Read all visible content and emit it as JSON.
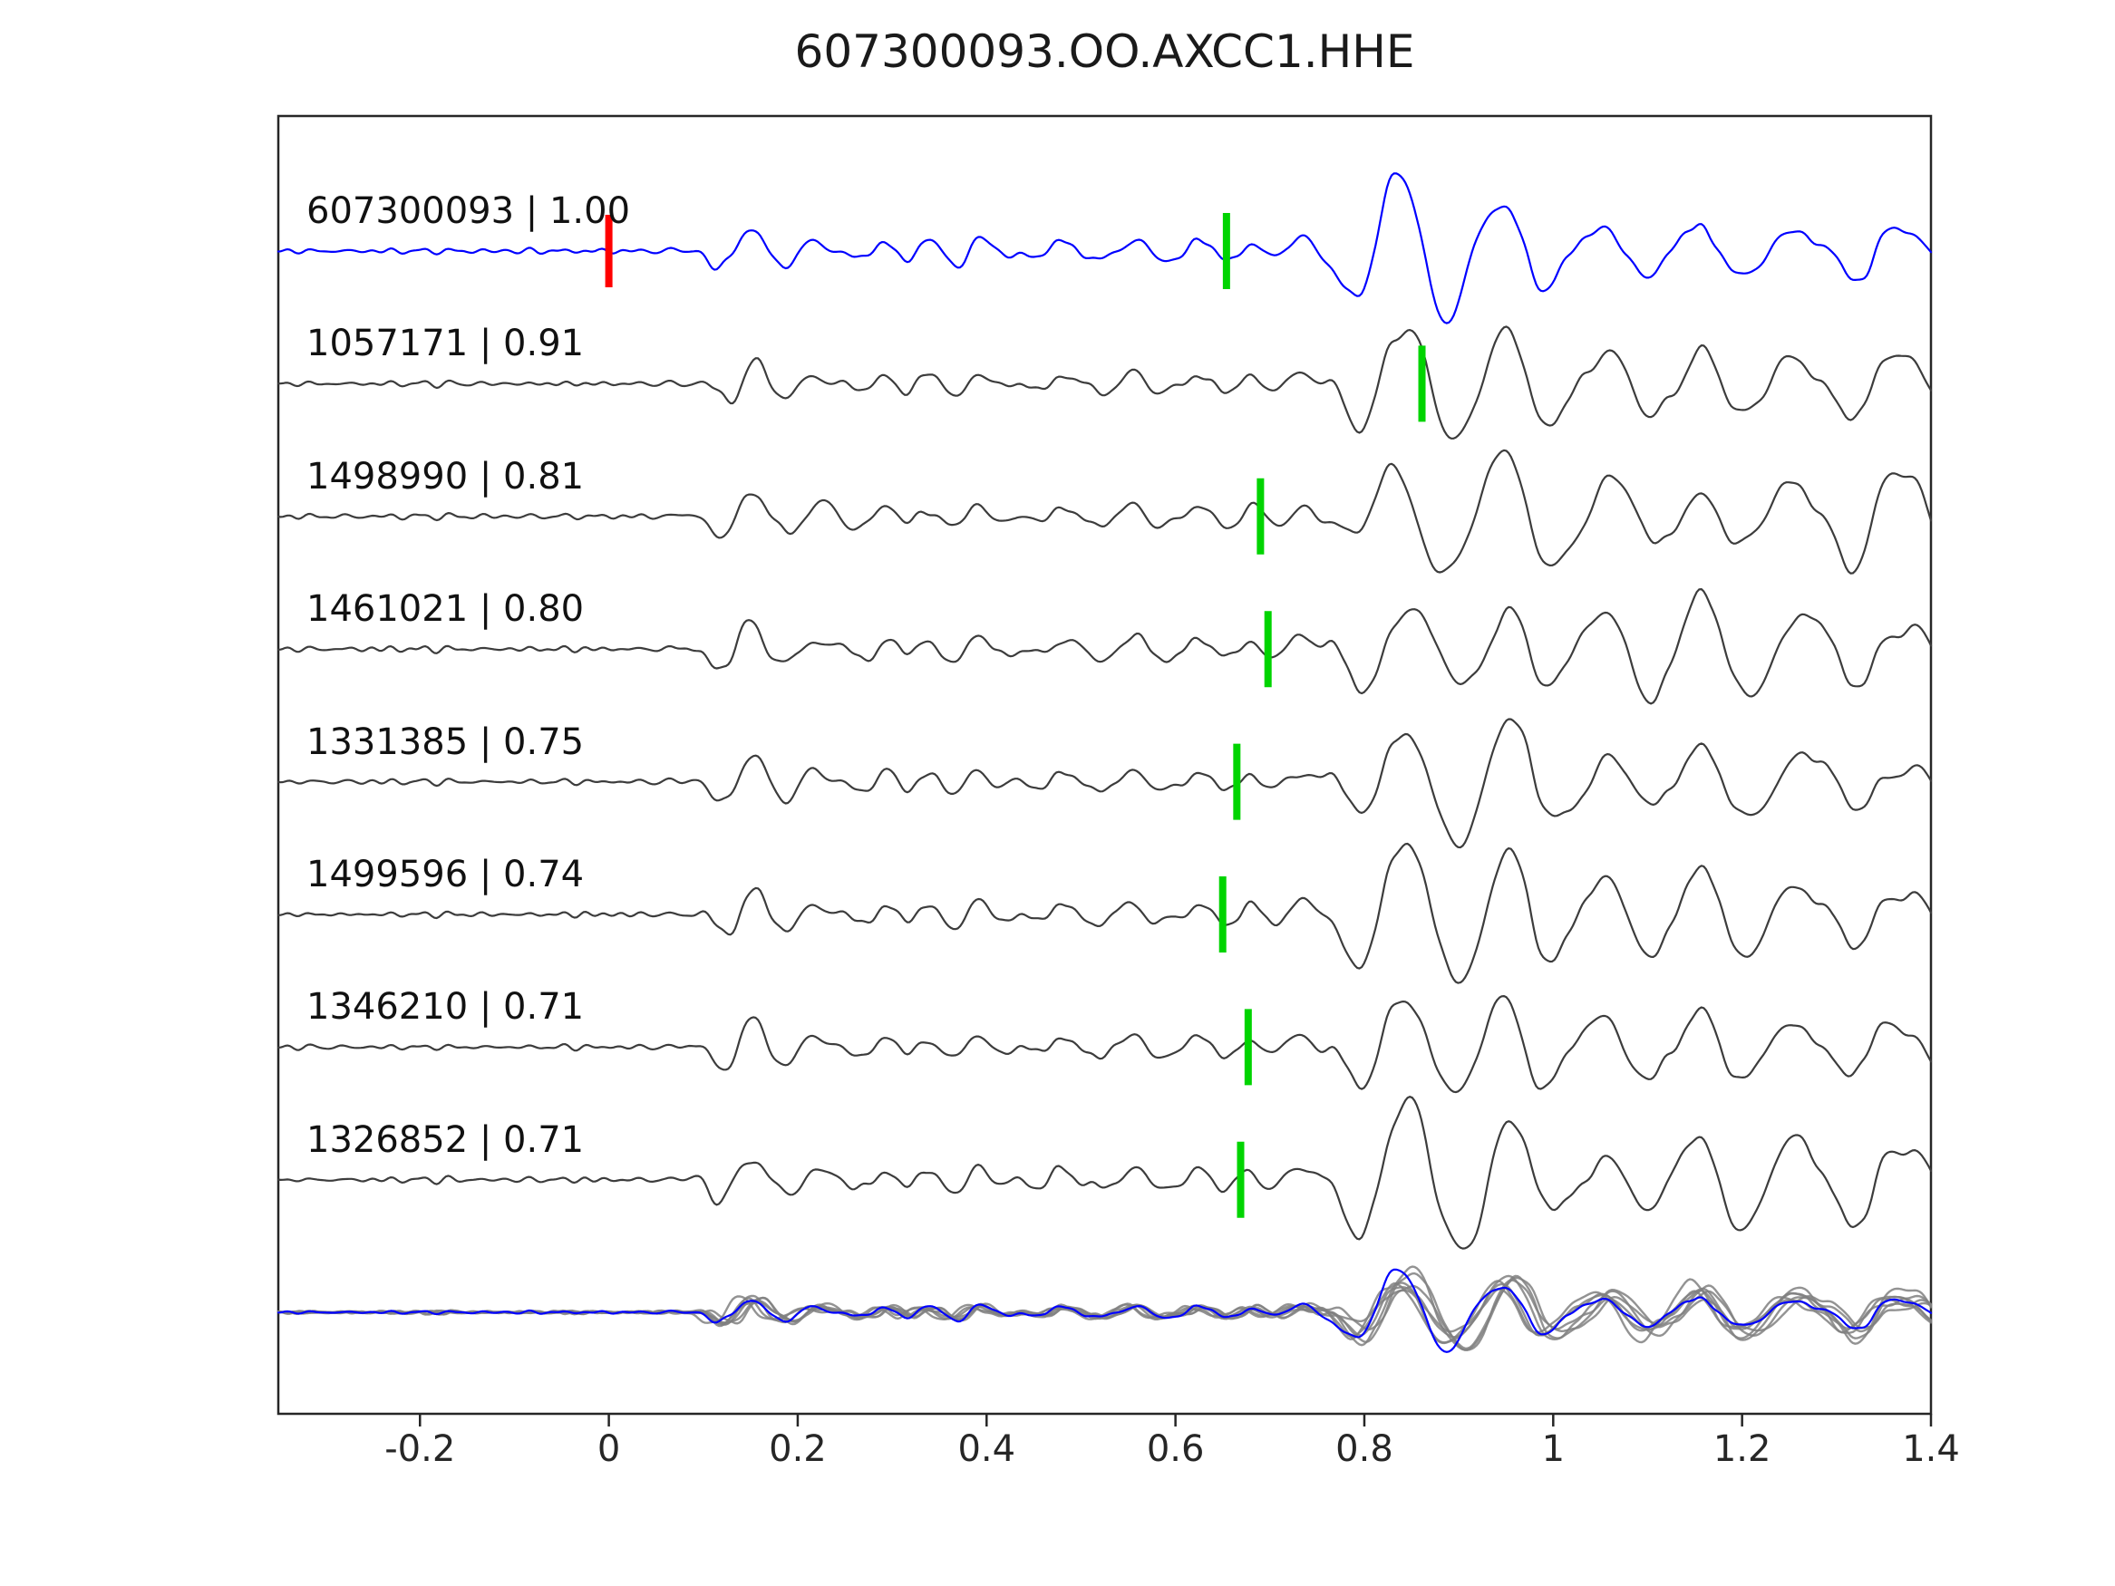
{
  "chart_data": {
    "type": "line",
    "title": "607300093.OO.AXCC1.HHE",
    "xlabel": "",
    "ylabel": "",
    "xlim": [
      -0.35,
      1.4
    ],
    "x_ticks": [
      "-0.2",
      "0",
      "0.2",
      "0.4",
      "0.6",
      "0.8",
      "1",
      "1.2",
      "1.4"
    ],
    "x_tick_values": [
      -0.2,
      0,
      0.2,
      0.4,
      0.6,
      0.8,
      1,
      1.2,
      1.4
    ],
    "grid": false,
    "legend": "none",
    "description": "Stacked normalized seismic waveform traces aligned in time. Top trace is template event 607300093 (blue) with a red origin tick at t=0 and a green pick tick; below are seven matched detections (dark gray), each labeled 'id | correlation' with a green pick tick. Bottom row overlays all detection traces (gray) with the template trace (blue).",
    "series": [
      {
        "id": "607300093",
        "label": "607300093 | 1.00",
        "correlation": 1.0,
        "origin": 0.0,
        "pick": 0.654,
        "role": "target",
        "seed": 11
      },
      {
        "id": "1057171",
        "label": "1057171 | 0.91",
        "correlation": 0.91,
        "pick": 0.861,
        "role": "detection",
        "seed": 22
      },
      {
        "id": "1498990",
        "label": "1498990 | 0.81",
        "correlation": 0.81,
        "pick": 0.69,
        "role": "detection",
        "seed": 33
      },
      {
        "id": "1461021",
        "label": "1461021 | 0.80",
        "correlation": 0.8,
        "pick": 0.698,
        "role": "detection",
        "seed": 44
      },
      {
        "id": "1331385",
        "label": "1331385 | 0.75",
        "correlation": 0.75,
        "pick": 0.665,
        "role": "detection",
        "seed": 55
      },
      {
        "id": "1499596",
        "label": "1499596 | 0.74",
        "correlation": 0.74,
        "pick": 0.65,
        "role": "detection",
        "seed": 66
      },
      {
        "id": "1346210",
        "label": "1346210 | 0.71",
        "correlation": 0.71,
        "pick": 0.677,
        "role": "detection",
        "seed": 77
      },
      {
        "id": "1326852",
        "label": "1326852 | 0.71",
        "correlation": 0.71,
        "pick": 0.669,
        "role": "detection",
        "seed": 88
      }
    ],
    "overlay_row": {
      "description": "all traces superimposed",
      "gray_member_ids": [
        "1057171",
        "1498990",
        "1461021",
        "1331385",
        "1499596",
        "1346210",
        "1326852"
      ],
      "highlight_id": "607300093"
    }
  },
  "colors": {
    "target": "#0000ff",
    "trace": "#3c3c3c",
    "overlay": "#808080",
    "pick": "#00d400",
    "origin": "#ff0000",
    "axis": "#262626",
    "text": "#1a1a1a"
  }
}
